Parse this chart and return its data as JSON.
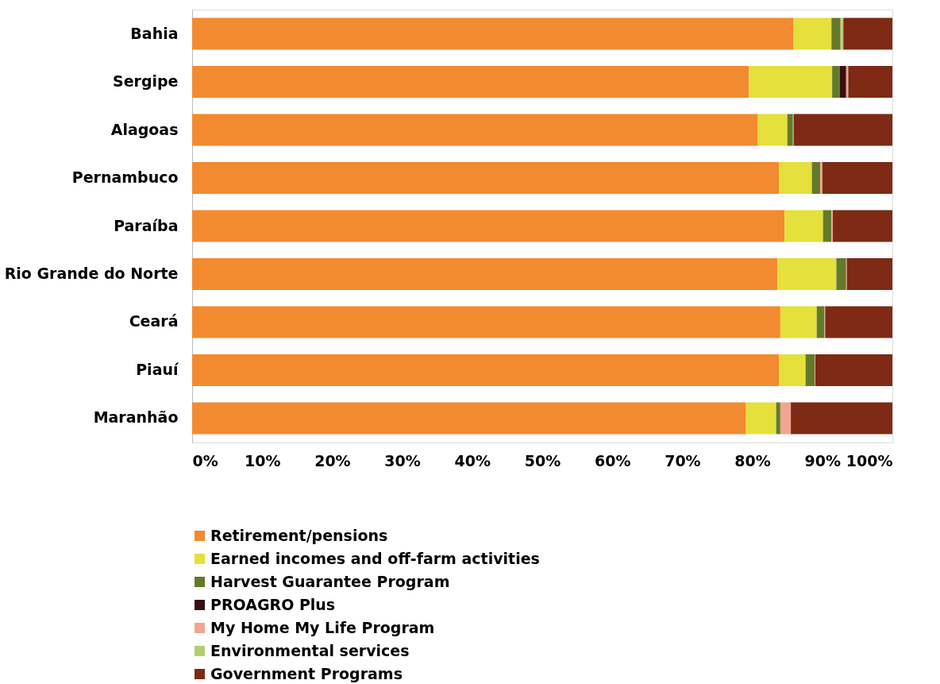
{
  "chart_data": {
    "type": "bar",
    "orientation": "horizontal",
    "stacked": true,
    "categories": [
      "Bahia",
      "Sergipe",
      "Alagoas",
      "Pernambuco",
      "Paraíba",
      "Rio Grande do Norte",
      "Ceará",
      "Piauí",
      "Maranhão"
    ],
    "series": [
      {
        "name": "Retirement/pensions",
        "color": "#f28a30",
        "values": [
          85.9,
          79.5,
          80.8,
          83.8,
          84.6,
          83.6,
          84.0,
          83.8,
          79.1
        ]
      },
      {
        "name": "Earned incomes and off-farm activities",
        "color": "#e5e03c",
        "values": [
          5.4,
          11.9,
          4.2,
          4.7,
          5.5,
          8.4,
          5.2,
          3.8,
          4.3
        ]
      },
      {
        "name": "Harvest Guarantee Program",
        "color": "#637a2a",
        "values": [
          1.3,
          1.1,
          0.8,
          1.2,
          1.2,
          1.4,
          1.1,
          1.3,
          0.6
        ]
      },
      {
        "name": "PROAGRO Plus",
        "color": "#3a0f10",
        "values": [
          null,
          0.9,
          null,
          null,
          null,
          null,
          null,
          null,
          null
        ]
      },
      {
        "name": "My Home My Life Program",
        "color": "#f0a590",
        "values": [
          0.1,
          0.3,
          null,
          0.3,
          0.2,
          0.1,
          0.1,
          0.1,
          1.5
        ]
      },
      {
        "name": "Environmental services",
        "color": "#b3cf6e",
        "values": [
          0.3,
          null,
          0.1,
          null,
          null,
          null,
          null,
          null,
          null
        ]
      },
      {
        "name": "Government Programs",
        "color": "#7e2a14",
        "values": [
          7.0,
          6.3,
          14.1,
          10.0,
          8.5,
          6.5,
          9.6,
          11.0,
          14.5
        ]
      }
    ],
    "xlim": [
      0,
      100
    ],
    "xticks": [
      {
        "value": 0,
        "label": "0%"
      },
      {
        "value": 10,
        "label": "10%"
      },
      {
        "value": 20,
        "label": "20%"
      },
      {
        "value": 30,
        "label": "30%"
      },
      {
        "value": 40,
        "label": "40%"
      },
      {
        "value": 50,
        "label": "50%"
      },
      {
        "value": 60,
        "label": "60%"
      },
      {
        "value": 70,
        "label": "70%"
      },
      {
        "value": 80,
        "label": "80%"
      },
      {
        "value": 90,
        "label": "90%"
      },
      {
        "value": 100,
        "label": "100%"
      }
    ],
    "grid": false,
    "legend": "bottom"
  }
}
